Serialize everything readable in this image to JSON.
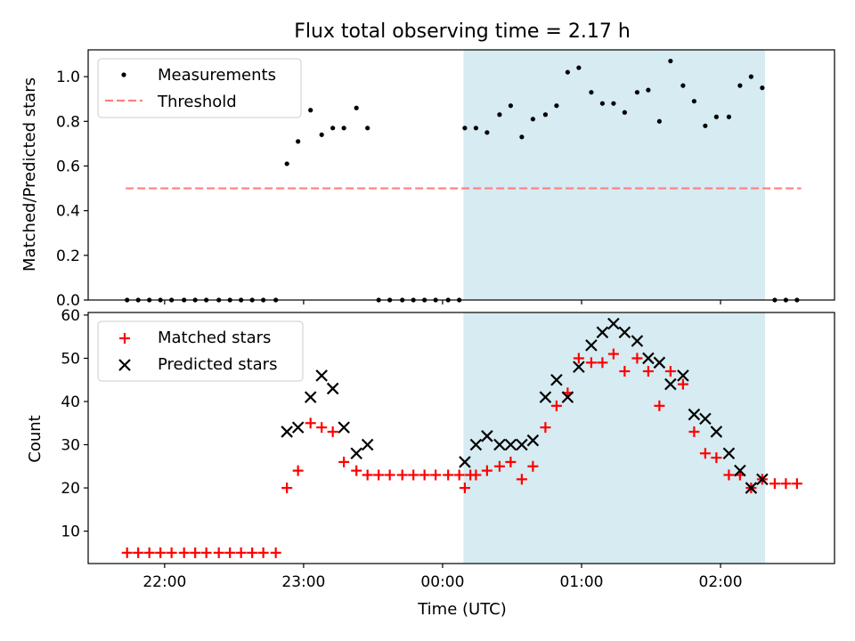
{
  "figure": {
    "title": "Flux total observing time = 2.17 h",
    "shared_xlabel": "Time (UTC)"
  },
  "chart_data": [
    {
      "type": "scatter",
      "panel": "top",
      "title": "Flux total observing time = 2.17 h",
      "xlabel": "",
      "ylabel": "Matched/Predicted stars",
      "x_unit": "hours UTC (values past 24 are after midnight)",
      "xlim": [
        21.45,
        26.82
      ],
      "ylim": [
        0.0,
        1.12
      ],
      "x_ticks": [
        22,
        23,
        24,
        25,
        26
      ],
      "x_tick_labels_shown": false,
      "y_ticks": [
        0.0,
        0.2,
        0.4,
        0.6,
        0.8,
        1.0
      ],
      "y_tick_labels": [
        "0.0",
        "0.2",
        "0.4",
        "0.6",
        "0.8",
        "1.0"
      ],
      "legend_position": "top-left",
      "highlight_span": {
        "x": [
          24.15,
          26.32
        ],
        "color": "#add8e6"
      },
      "threshold": {
        "name": "Threshold",
        "y": 0.5,
        "x": [
          21.72,
          26.58
        ],
        "color": "#ff7f7f",
        "style": "dashed"
      },
      "series": [
        {
          "name": "Measurements",
          "marker": "dot",
          "color": "#000000",
          "points": [
            [
              21.73,
              0.0
            ],
            [
              21.81,
              0.0
            ],
            [
              21.89,
              0.0
            ],
            [
              21.97,
              0.0
            ],
            [
              22.05,
              0.0
            ],
            [
              22.14,
              0.0
            ],
            [
              22.22,
              0.0
            ],
            [
              22.3,
              0.0
            ],
            [
              22.39,
              0.0
            ],
            [
              22.47,
              0.0
            ],
            [
              22.55,
              0.0
            ],
            [
              22.63,
              0.0
            ],
            [
              22.71,
              0.0
            ],
            [
              22.8,
              0.0
            ],
            [
              22.88,
              0.61
            ],
            [
              22.96,
              0.71
            ],
            [
              23.05,
              0.85
            ],
            [
              23.13,
              0.74
            ],
            [
              23.21,
              0.77
            ],
            [
              23.29,
              0.77
            ],
            [
              23.38,
              0.86
            ],
            [
              23.46,
              0.77
            ],
            [
              23.54,
              0.0
            ],
            [
              23.62,
              0.0
            ],
            [
              23.71,
              0.0
            ],
            [
              23.79,
              0.0
            ],
            [
              23.87,
              0.0
            ],
            [
              23.95,
              0.0
            ],
            [
              24.04,
              0.0
            ],
            [
              24.12,
              0.0
            ],
            [
              24.16,
              0.77
            ],
            [
              24.24,
              0.77
            ],
            [
              24.32,
              0.75
            ],
            [
              24.41,
              0.83
            ],
            [
              24.49,
              0.87
            ],
            [
              24.57,
              0.73
            ],
            [
              24.65,
              0.81
            ],
            [
              24.74,
              0.83
            ],
            [
              24.82,
              0.87
            ],
            [
              24.9,
              1.02
            ],
            [
              24.98,
              1.04
            ],
            [
              25.07,
              0.93
            ],
            [
              25.15,
              0.88
            ],
            [
              25.23,
              0.88
            ],
            [
              25.31,
              0.84
            ],
            [
              25.4,
              0.93
            ],
            [
              25.48,
              0.94
            ],
            [
              25.56,
              0.8
            ],
            [
              25.64,
              1.07
            ],
            [
              25.73,
              0.96
            ],
            [
              25.81,
              0.89
            ],
            [
              25.89,
              0.78
            ],
            [
              25.97,
              0.82
            ],
            [
              26.06,
              0.82
            ],
            [
              26.14,
              0.96
            ],
            [
              26.22,
              1.0
            ],
            [
              26.3,
              0.95
            ],
            [
              26.39,
              0.0
            ],
            [
              26.47,
              0.0
            ],
            [
              26.55,
              0.0
            ]
          ]
        }
      ]
    },
    {
      "type": "scatter",
      "panel": "bottom",
      "title": "",
      "xlabel": "Time (UTC)",
      "ylabel": "Count",
      "x_unit": "hours UTC (values past 24 are after midnight)",
      "xlim": [
        21.45,
        26.82
      ],
      "ylim": [
        2.5,
        60.6
      ],
      "x_ticks": [
        22,
        23,
        24,
        25,
        26
      ],
      "x_tick_labels": [
        "22:00",
        "23:00",
        "00:00",
        "01:00",
        "02:00"
      ],
      "y_ticks": [
        10,
        20,
        30,
        40,
        50,
        60
      ],
      "y_tick_labels": [
        "10",
        "20",
        "30",
        "40",
        "50",
        "60"
      ],
      "legend_position": "top-left",
      "highlight_span": {
        "x": [
          24.15,
          26.32
        ],
        "color": "#add8e6"
      },
      "series": [
        {
          "name": "Matched stars",
          "marker": "plus",
          "color": "#ff0000",
          "points": [
            [
              21.73,
              5
            ],
            [
              21.81,
              5
            ],
            [
              21.89,
              5
            ],
            [
              21.97,
              5
            ],
            [
              22.05,
              5
            ],
            [
              22.14,
              5
            ],
            [
              22.22,
              5
            ],
            [
              22.3,
              5
            ],
            [
              22.39,
              5
            ],
            [
              22.47,
              5
            ],
            [
              22.55,
              5
            ],
            [
              22.63,
              5
            ],
            [
              22.71,
              5
            ],
            [
              22.8,
              5
            ],
            [
              22.88,
              20
            ],
            [
              22.96,
              24
            ],
            [
              23.05,
              35
            ],
            [
              23.13,
              34
            ],
            [
              23.21,
              33
            ],
            [
              23.29,
              26
            ],
            [
              23.38,
              24
            ],
            [
              23.46,
              23
            ],
            [
              23.54,
              23
            ],
            [
              23.62,
              23
            ],
            [
              23.71,
              23
            ],
            [
              23.79,
              23
            ],
            [
              23.87,
              23
            ],
            [
              23.95,
              23
            ],
            [
              24.04,
              23
            ],
            [
              24.12,
              23
            ],
            [
              24.2,
              23
            ],
            [
              24.16,
              20
            ],
            [
              24.24,
              23
            ],
            [
              24.32,
              24
            ],
            [
              24.41,
              25
            ],
            [
              24.49,
              26
            ],
            [
              24.57,
              22
            ],
            [
              24.65,
              25
            ],
            [
              24.74,
              34
            ],
            [
              24.82,
              39
            ],
            [
              24.9,
              42
            ],
            [
              24.98,
              50
            ],
            [
              25.07,
              49
            ],
            [
              25.15,
              49
            ],
            [
              25.23,
              51
            ],
            [
              25.31,
              47
            ],
            [
              25.4,
              50
            ],
            [
              25.48,
              47
            ],
            [
              25.56,
              39
            ],
            [
              25.64,
              47
            ],
            [
              25.73,
              44
            ],
            [
              25.81,
              33
            ],
            [
              25.89,
              28
            ],
            [
              25.97,
              27
            ],
            [
              26.06,
              23
            ],
            [
              26.14,
              23
            ],
            [
              26.22,
              20
            ],
            [
              26.3,
              22
            ],
            [
              26.39,
              21
            ],
            [
              26.47,
              21
            ],
            [
              26.55,
              21
            ]
          ]
        },
        {
          "name": "Predicted stars",
          "marker": "x",
          "color": "#000000",
          "points": [
            [
              22.88,
              33
            ],
            [
              22.96,
              34
            ],
            [
              23.05,
              41
            ],
            [
              23.13,
              46
            ],
            [
              23.21,
              43
            ],
            [
              23.29,
              34
            ],
            [
              23.38,
              28
            ],
            [
              23.46,
              30
            ],
            [
              24.16,
              26
            ],
            [
              24.24,
              30
            ],
            [
              24.32,
              32
            ],
            [
              24.41,
              30
            ],
            [
              24.49,
              30
            ],
            [
              24.57,
              30
            ],
            [
              24.65,
              31
            ],
            [
              24.74,
              41
            ],
            [
              24.82,
              45
            ],
            [
              24.9,
              41
            ],
            [
              24.98,
              48
            ],
            [
              25.07,
              53
            ],
            [
              25.15,
              56
            ],
            [
              25.23,
              58
            ],
            [
              25.31,
              56
            ],
            [
              25.4,
              54
            ],
            [
              25.48,
              50
            ],
            [
              25.56,
              49
            ],
            [
              25.64,
              44
            ],
            [
              25.73,
              46
            ],
            [
              25.81,
              37
            ],
            [
              25.89,
              36
            ],
            [
              25.97,
              33
            ],
            [
              26.06,
              28
            ],
            [
              26.14,
              24
            ],
            [
              26.22,
              20
            ],
            [
              26.3,
              22
            ]
          ]
        }
      ]
    }
  ]
}
